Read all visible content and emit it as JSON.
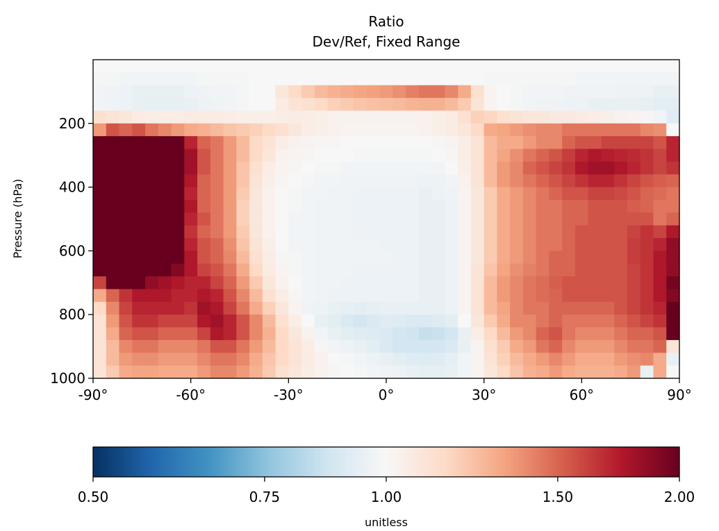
{
  "chart_data": {
    "type": "heatmap",
    "title": "Ratio",
    "subtitle": "Dev/Ref, Fixed Range",
    "xlabel": "",
    "ylabel": "Pressure (hPa)",
    "xlim": [
      -90,
      90
    ],
    "ylim": [
      1000,
      0
    ],
    "x_ticks": [
      "-90°",
      "-60°",
      "-30°",
      "0°",
      "30°",
      "60°",
      "90°"
    ],
    "x_tick_values": [
      -90,
      -60,
      -30,
      0,
      30,
      60,
      90
    ],
    "y_ticks": [
      "200",
      "400",
      "600",
      "800",
      "1000"
    ],
    "y_tick_values": [
      200,
      400,
      600,
      800,
      1000
    ],
    "x_centers": [
      -88,
      -84,
      -80,
      -76,
      -72,
      -68,
      -64,
      -60,
      -56,
      -52,
      -48,
      -44,
      -40,
      -36,
      -32,
      -28,
      -24,
      -20,
      -16,
      -12,
      -8,
      -4,
      0,
      4,
      8,
      12,
      16,
      20,
      24,
      28,
      32,
      36,
      40,
      44,
      48,
      52,
      56,
      60,
      64,
      68,
      72,
      76,
      80,
      84,
      88
    ],
    "pressure_levels": [
      20,
      60,
      100,
      140,
      180,
      220,
      260,
      300,
      340,
      380,
      420,
      460,
      500,
      540,
      580,
      620,
      660,
      700,
      740,
      780,
      820,
      860,
      900,
      940,
      980
    ],
    "values": [
      [
        1.0,
        1.0,
        1.0,
        1.0,
        1.0,
        1.0,
        1.0,
        1.0,
        1.0,
        1.0,
        1.0,
        1.0,
        1.0,
        1.0,
        1.0,
        1.0,
        1.0,
        1.0,
        1.0,
        1.0,
        1.0,
        1.0,
        1.0,
        1.0,
        1.0,
        1.0,
        1.0,
        1.0,
        1.0,
        1.0,
        1.0,
        1.0,
        1.0,
        1.0,
        1.0,
        1.0,
        1.0,
        1.0,
        1.0,
        1.0,
        1.0,
        1.0,
        1.0,
        1.0,
        1.0
      ],
      [
        0.99,
        0.99,
        0.98,
        0.98,
        0.98,
        0.98,
        0.98,
        0.98,
        0.99,
        0.99,
        0.99,
        0.99,
        1.0,
        1.0,
        1.0,
        1.0,
        1.0,
        1.0,
        1.0,
        1.0,
        1.0,
        1.0,
        1.0,
        1.0,
        1.0,
        1.0,
        1.0,
        1.0,
        1.0,
        1.0,
        0.99,
        0.99,
        0.99,
        0.99,
        0.99,
        0.99,
        0.99,
        0.98,
        0.98,
        0.98,
        0.98,
        0.98,
        0.98,
        0.98,
        0.98
      ],
      [
        0.98,
        0.97,
        0.96,
        0.95,
        0.95,
        0.95,
        0.95,
        0.96,
        0.97,
        0.98,
        0.98,
        0.99,
        1.0,
        1.0,
        1.08,
        1.15,
        1.2,
        1.25,
        1.28,
        1.3,
        1.32,
        1.33,
        1.35,
        1.38,
        1.42,
        1.45,
        1.45,
        1.4,
        1.3,
        1.12,
        1.02,
        1.0,
        0.99,
        0.98,
        0.98,
        0.98,
        0.97,
        0.97,
        0.97,
        0.97,
        0.96,
        0.96,
        0.96,
        0.95,
        0.95
      ],
      [
        0.98,
        0.97,
        0.96,
        0.95,
        0.94,
        0.94,
        0.94,
        0.95,
        0.96,
        0.97,
        0.98,
        0.99,
        1.0,
        1.0,
        1.06,
        1.1,
        1.12,
        1.15,
        1.18,
        1.2,
        1.22,
        1.23,
        1.24,
        1.25,
        1.27,
        1.28,
        1.28,
        1.25,
        1.2,
        1.1,
        1.02,
        1.0,
        0.99,
        0.98,
        0.97,
        0.97,
        0.96,
        0.96,
        0.95,
        0.95,
        0.95,
        0.95,
        0.94,
        0.93,
        0.93
      ],
      [
        1.12,
        1.1,
        1.08,
        1.06,
        1.05,
        1.05,
        1.05,
        1.06,
        1.06,
        1.06,
        1.05,
        1.04,
        1.04,
        1.04,
        1.05,
        1.06,
        1.05,
        1.04,
        1.03,
        1.03,
        1.03,
        1.03,
        1.03,
        1.03,
        1.03,
        1.03,
        1.04,
        1.06,
        1.12,
        1.18,
        1.16,
        1.12,
        1.1,
        1.08,
        1.08,
        1.07,
        1.07,
        1.06,
        1.05,
        1.04,
        1.03,
        1.02,
        1.01,
        0.98,
        0.92
      ],
      [
        1.35,
        1.55,
        1.5,
        1.55,
        1.45,
        1.4,
        1.35,
        1.3,
        1.28,
        1.25,
        1.22,
        1.2,
        1.18,
        1.15,
        1.12,
        1.08,
        1.05,
        1.04,
        1.03,
        1.02,
        1.02,
        1.02,
        1.02,
        1.02,
        1.02,
        1.03,
        1.04,
        1.06,
        1.08,
        1.15,
        1.3,
        1.32,
        1.35,
        1.38,
        1.4,
        1.4,
        1.45,
        1.45,
        1.45,
        1.45,
        1.45,
        1.45,
        1.4,
        1.38,
        1.0
      ],
      [
        2.0,
        2.0,
        2.0,
        2.0,
        2.0,
        2.0,
        2.0,
        1.7,
        1.5,
        1.45,
        1.35,
        1.25,
        1.15,
        1.1,
        1.05,
        1.03,
        1.02,
        1.01,
        1.01,
        1.0,
        1.0,
        1.0,
        1.0,
        1.0,
        1.0,
        1.0,
        1.01,
        1.02,
        1.05,
        1.1,
        1.25,
        1.3,
        1.3,
        1.35,
        1.4,
        1.4,
        1.5,
        1.55,
        1.55,
        1.6,
        1.6,
        1.6,
        1.6,
        1.55,
        1.7
      ],
      [
        2.0,
        2.0,
        2.0,
        2.0,
        2.0,
        2.0,
        2.0,
        1.8,
        1.55,
        1.45,
        1.35,
        1.25,
        1.15,
        1.08,
        1.03,
        1.02,
        1.01,
        1.0,
        1.0,
        1.0,
        0.99,
        0.99,
        0.99,
        0.99,
        0.99,
        0.99,
        1.0,
        1.01,
        1.05,
        1.1,
        1.25,
        1.32,
        1.38,
        1.45,
        1.5,
        1.55,
        1.62,
        1.7,
        1.75,
        1.72,
        1.7,
        1.68,
        1.65,
        1.6,
        1.7
      ],
      [
        2.0,
        2.0,
        2.0,
        2.0,
        2.0,
        2.0,
        2.0,
        1.8,
        1.55,
        1.45,
        1.35,
        1.22,
        1.12,
        1.05,
        1.02,
        1.01,
        1.0,
        0.99,
        0.99,
        0.98,
        0.98,
        0.98,
        0.98,
        0.98,
        0.98,
        0.98,
        0.98,
        1.0,
        1.04,
        1.1,
        1.25,
        1.35,
        1.4,
        1.5,
        1.55,
        1.6,
        1.65,
        1.75,
        1.8,
        1.8,
        1.75,
        1.7,
        1.65,
        1.6,
        1.65
      ],
      [
        2.0,
        2.0,
        2.0,
        2.0,
        2.0,
        2.0,
        2.0,
        1.75,
        1.5,
        1.45,
        1.35,
        1.22,
        1.1,
        1.04,
        1.01,
        1.0,
        0.99,
        0.98,
        0.98,
        0.97,
        0.97,
        0.97,
        0.97,
        0.97,
        0.97,
        0.96,
        0.96,
        0.98,
        1.03,
        1.1,
        1.25,
        1.35,
        1.4,
        1.45,
        1.5,
        1.55,
        1.6,
        1.65,
        1.7,
        1.7,
        1.65,
        1.6,
        1.55,
        1.52,
        1.5
      ],
      [
        2.0,
        2.0,
        2.0,
        2.0,
        2.0,
        2.0,
        2.0,
        1.7,
        1.5,
        1.45,
        1.35,
        1.2,
        1.08,
        1.03,
        1.0,
        0.99,
        0.98,
        0.98,
        0.97,
        0.97,
        0.96,
        0.96,
        0.96,
        0.96,
        0.96,
        0.95,
        0.96,
        0.97,
        1.02,
        1.08,
        1.2,
        1.3,
        1.35,
        1.4,
        1.45,
        1.5,
        1.55,
        1.55,
        1.6,
        1.6,
        1.58,
        1.55,
        1.5,
        1.48,
        1.45
      ],
      [
        2.0,
        2.0,
        2.0,
        2.0,
        2.0,
        2.0,
        2.0,
        1.75,
        1.5,
        1.45,
        1.35,
        1.18,
        1.08,
        1.03,
        1.0,
        0.99,
        0.98,
        0.97,
        0.97,
        0.97,
        0.96,
        0.96,
        0.96,
        0.96,
        0.96,
        0.95,
        0.95,
        0.96,
        1.02,
        1.08,
        1.2,
        1.3,
        1.35,
        1.4,
        1.45,
        1.45,
        1.5,
        1.5,
        1.55,
        1.55,
        1.55,
        1.52,
        1.5,
        1.45,
        1.45
      ],
      [
        2.0,
        2.0,
        2.0,
        2.0,
        2.0,
        2.0,
        2.0,
        1.7,
        1.55,
        1.45,
        1.35,
        1.18,
        1.08,
        1.03,
        1.0,
        0.98,
        0.98,
        0.97,
        0.97,
        0.97,
        0.96,
        0.96,
        0.96,
        0.96,
        0.96,
        0.95,
        0.95,
        0.96,
        1.02,
        1.08,
        1.2,
        1.3,
        1.35,
        1.4,
        1.45,
        1.45,
        1.5,
        1.5,
        1.55,
        1.55,
        1.55,
        1.55,
        1.55,
        1.45,
        1.5
      ],
      [
        2.0,
        2.0,
        2.0,
        2.0,
        2.0,
        2.0,
        2.0,
        1.65,
        1.5,
        1.45,
        1.35,
        1.2,
        1.08,
        1.03,
        1.0,
        0.98,
        0.98,
        0.97,
        0.97,
        0.97,
        0.96,
        0.96,
        0.96,
        0.96,
        0.96,
        0.95,
        0.95,
        0.96,
        1.02,
        1.08,
        1.2,
        1.3,
        1.35,
        1.4,
        1.45,
        1.45,
        1.5,
        1.55,
        1.55,
        1.55,
        1.55,
        1.6,
        1.65,
        1.6,
        1.75
      ],
      [
        2.0,
        2.0,
        2.0,
        2.0,
        2.0,
        2.0,
        2.0,
        1.7,
        1.55,
        1.5,
        1.38,
        1.22,
        1.1,
        1.04,
        1.0,
        0.98,
        0.98,
        0.97,
        0.97,
        0.97,
        0.97,
        0.97,
        0.96,
        0.96,
        0.96,
        0.95,
        0.95,
        0.96,
        1.02,
        1.08,
        1.2,
        1.3,
        1.35,
        1.4,
        1.45,
        1.45,
        1.5,
        1.55,
        1.55,
        1.55,
        1.55,
        1.62,
        1.65,
        1.7,
        1.85
      ],
      [
        2.0,
        2.0,
        2.0,
        2.0,
        2.0,
        2.0,
        2.0,
        1.75,
        1.55,
        1.5,
        1.4,
        1.25,
        1.12,
        1.05,
        1.01,
        0.99,
        0.98,
        0.97,
        0.97,
        0.97,
        0.97,
        0.97,
        0.97,
        0.96,
        0.96,
        0.95,
        0.95,
        0.96,
        1.02,
        1.08,
        1.2,
        1.3,
        1.35,
        1.4,
        1.45,
        1.5,
        1.5,
        1.55,
        1.55,
        1.55,
        1.55,
        1.62,
        1.65,
        1.75,
        1.85
      ],
      [
        2.0,
        2.0,
        2.0,
        2.0,
        2.0,
        2.0,
        1.9,
        1.75,
        1.6,
        1.55,
        1.45,
        1.3,
        1.15,
        1.06,
        1.02,
        0.99,
        0.98,
        0.97,
        0.97,
        0.97,
        0.96,
        0.96,
        0.96,
        0.96,
        0.96,
        0.95,
        0.95,
        0.96,
        1.02,
        1.1,
        1.22,
        1.32,
        1.38,
        1.42,
        1.45,
        1.5,
        1.5,
        1.55,
        1.55,
        1.55,
        1.55,
        1.6,
        1.65,
        1.75,
        1.85
      ],
      [
        1.6,
        2.0,
        2.0,
        2.0,
        1.85,
        1.8,
        1.75,
        1.7,
        1.7,
        1.6,
        1.5,
        1.35,
        1.2,
        1.08,
        1.03,
        1.0,
        0.98,
        0.97,
        0.97,
        0.96,
        0.96,
        0.96,
        0.96,
        0.96,
        0.96,
        0.95,
        0.95,
        0.96,
        1.02,
        1.1,
        1.25,
        1.35,
        1.4,
        1.45,
        1.48,
        1.52,
        1.55,
        1.55,
        1.55,
        1.55,
        1.55,
        1.6,
        1.65,
        1.75,
        1.95
      ],
      [
        1.3,
        1.5,
        1.65,
        1.75,
        1.75,
        1.75,
        1.7,
        1.7,
        1.75,
        1.7,
        1.55,
        1.4,
        1.25,
        1.12,
        1.05,
        1.01,
        0.98,
        0.97,
        0.96,
        0.96,
        0.96,
        0.96,
        0.96,
        0.96,
        0.96,
        0.95,
        0.95,
        0.96,
        1.02,
        1.1,
        1.25,
        1.35,
        1.4,
        1.45,
        1.48,
        1.5,
        1.55,
        1.55,
        1.55,
        1.55,
        1.55,
        1.6,
        1.65,
        1.75,
        1.9
      ],
      [
        1.15,
        1.4,
        1.6,
        1.7,
        1.7,
        1.7,
        1.7,
        1.65,
        1.8,
        1.75,
        1.6,
        1.45,
        1.3,
        1.18,
        1.08,
        1.02,
        0.97,
        0.96,
        0.95,
        0.94,
        0.93,
        0.94,
        0.95,
        0.95,
        0.95,
        0.95,
        0.95,
        0.96,
        1.02,
        1.1,
        1.25,
        1.32,
        1.4,
        1.45,
        1.45,
        1.5,
        1.5,
        1.5,
        1.5,
        1.5,
        1.55,
        1.6,
        1.65,
        1.7,
        2.0
      ],
      [
        1.1,
        1.35,
        1.55,
        1.65,
        1.65,
        1.6,
        1.6,
        1.6,
        1.75,
        1.8,
        1.7,
        1.55,
        1.4,
        1.25,
        1.12,
        1.05,
        1.0,
        0.95,
        0.93,
        0.9,
        0.88,
        0.9,
        0.92,
        0.91,
        0.9,
        0.9,
        0.91,
        0.93,
        1.0,
        1.08,
        1.2,
        1.3,
        1.4,
        1.4,
        1.45,
        1.5,
        1.45,
        1.45,
        1.45,
        1.45,
        1.5,
        1.55,
        1.6,
        1.65,
        2.0
      ],
      [
        1.1,
        1.3,
        1.5,
        1.55,
        1.55,
        1.5,
        1.5,
        1.5,
        1.6,
        1.75,
        1.7,
        1.55,
        1.4,
        1.28,
        1.15,
        1.08,
        1.03,
        0.98,
        0.95,
        0.93,
        0.92,
        0.91,
        0.9,
        0.88,
        0.87,
        0.85,
        0.86,
        0.88,
        0.95,
        1.05,
        1.15,
        1.25,
        1.35,
        1.4,
        1.5,
        1.55,
        1.45,
        1.4,
        1.4,
        1.4,
        1.45,
        1.5,
        1.5,
        1.55,
        2.0
      ],
      [
        1.1,
        1.25,
        1.4,
        1.45,
        1.45,
        1.4,
        1.4,
        1.4,
        1.45,
        1.55,
        1.55,
        1.45,
        1.35,
        1.25,
        1.15,
        1.1,
        1.05,
        1.01,
        0.98,
        0.96,
        0.95,
        0.93,
        0.9,
        0.88,
        0.88,
        0.88,
        0.88,
        0.9,
        0.95,
        1.02,
        1.12,
        1.2,
        1.3,
        1.35,
        1.45,
        1.5,
        1.4,
        1.35,
        1.35,
        1.35,
        1.4,
        1.45,
        1.45,
        1.5,
        1.1
      ],
      [
        1.1,
        1.25,
        1.35,
        1.38,
        1.38,
        1.35,
        1.35,
        1.35,
        1.4,
        1.45,
        1.45,
        1.4,
        1.3,
        1.22,
        1.15,
        1.1,
        1.06,
        1.03,
        1.0,
        0.99,
        0.98,
        0.96,
        0.95,
        0.93,
        0.92,
        0.91,
        0.92,
        0.94,
        0.98,
        1.02,
        1.1,
        1.18,
        1.25,
        1.3,
        1.35,
        1.4,
        1.35,
        1.3,
        1.3,
        1.3,
        1.35,
        1.38,
        1.4,
        1.3,
        0.95
      ],
      [
        1.1,
        1.2,
        1.3,
        1.32,
        1.32,
        1.3,
        1.3,
        1.3,
        1.35,
        1.4,
        1.4,
        1.35,
        1.28,
        1.2,
        1.12,
        1.08,
        1.05,
        1.03,
        1.01,
        1.0,
        0.99,
        0.98,
        0.97,
        0.96,
        0.95,
        0.94,
        0.94,
        0.95,
        0.98,
        1.02,
        1.08,
        1.15,
        1.22,
        1.28,
        1.3,
        1.35,
        1.3,
        1.28,
        1.28,
        1.28,
        1.3,
        1.35,
        0.95,
        1.3,
        1.0
      ]
    ],
    "colorbar": {
      "label": "unitless",
      "tick_labels": [
        "0.50",
        "0.75",
        "1.00",
        "1.50",
        "2.00"
      ],
      "tick_values": [
        0.5,
        0.75,
        1.0,
        1.5,
        2.0
      ],
      "scale": "log",
      "range": [
        0.5,
        2.0
      ],
      "colormap": "RdBu_r",
      "colormap_colors": [
        "#053061",
        "#2166ac",
        "#4393c3",
        "#92c5de",
        "#d1e5f0",
        "#f7f7f7",
        "#fddbc7",
        "#f4a582",
        "#d6604d",
        "#b2182b",
        "#67001f"
      ]
    }
  }
}
